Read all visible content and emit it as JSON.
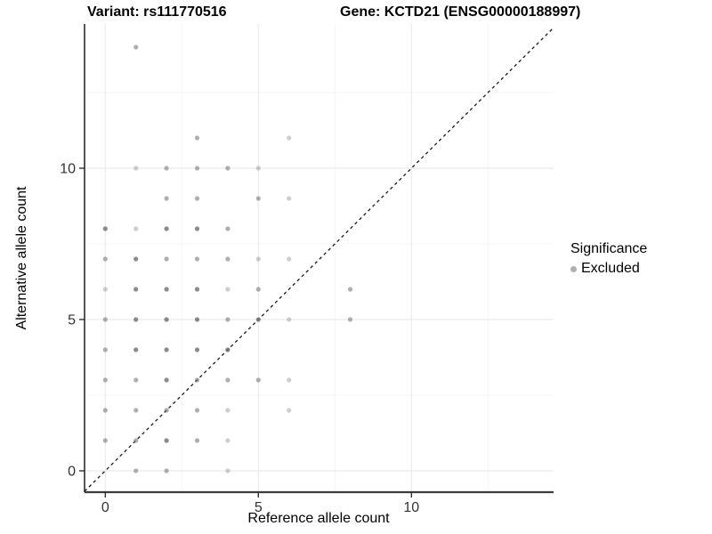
{
  "titles": {
    "variant": "Variant: rs111770516",
    "gene": "Gene: KCTD21 (ENSG00000188997)"
  },
  "axes": {
    "x": {
      "label": "Reference allele count",
      "tick_labels": [
        "0",
        "5",
        "10"
      ]
    },
    "y": {
      "label": "Alternative allele count",
      "tick_labels": [
        "0",
        "5",
        "10"
      ]
    }
  },
  "legend": {
    "title": "Significance",
    "items": [
      {
        "label": "Excluded",
        "color": "#b0b0b0"
      }
    ]
  },
  "colors": {
    "point": "#6e6e6e",
    "grid_major": "#ebebeb",
    "grid_minor": "#f5f5f5",
    "axis_line": "#3c3c3c",
    "tick_label": "#333333",
    "identity_line": "#1a1a1a",
    "background": "#ffffff"
  },
  "chart_data": {
    "type": "scatter",
    "title": "Variant: rs111770516 / Gene: KCTD21 (ENSG00000188997)",
    "xlabel": "Reference allele count",
    "ylabel": "Alternative allele count",
    "xlim": [
      -0.7,
      14.65
    ],
    "ylim": [
      -0.7,
      14.75
    ],
    "x_major_ticks": [
      0,
      5,
      10
    ],
    "y_major_ticks": [
      0,
      5,
      10
    ],
    "x_minor_ticks": [
      2.5,
      7.5,
      12.5
    ],
    "y_minor_ticks": [
      2.5,
      7.5,
      12.5
    ],
    "grid": "major and minor light-gray gridlines on white",
    "legend_position": "right",
    "identity_line": {
      "equation": "y = x",
      "style": "dashed"
    },
    "series": [
      {
        "name": "Excluded",
        "shade_note": "shade: 1=light 2=medium 3=dark (alpha over-plotting)",
        "points": [
          [
            1,
            14,
            2
          ],
          [
            3,
            11,
            2
          ],
          [
            6,
            11,
            1
          ],
          [
            1,
            10,
            1
          ],
          [
            2,
            10,
            2
          ],
          [
            3,
            10,
            2
          ],
          [
            4,
            10,
            2
          ],
          [
            5,
            10,
            1
          ],
          [
            2,
            9,
            2
          ],
          [
            3,
            9,
            2
          ],
          [
            5,
            9,
            2
          ],
          [
            6,
            9,
            1
          ],
          [
            0,
            8,
            3
          ],
          [
            1,
            8,
            1
          ],
          [
            2,
            8,
            3
          ],
          [
            3,
            8,
            3
          ],
          [
            4,
            8,
            2
          ],
          [
            0,
            7,
            2
          ],
          [
            1,
            7,
            3
          ],
          [
            2,
            7,
            2
          ],
          [
            3,
            7,
            2
          ],
          [
            4,
            7,
            2
          ],
          [
            5,
            7,
            1
          ],
          [
            6,
            7,
            1
          ],
          [
            0,
            6,
            1
          ],
          [
            1,
            6,
            3
          ],
          [
            2,
            6,
            3
          ],
          [
            3,
            6,
            3
          ],
          [
            4,
            6,
            1
          ],
          [
            5,
            6,
            2
          ],
          [
            8,
            6,
            2
          ],
          [
            0,
            5,
            2
          ],
          [
            1,
            5,
            3
          ],
          [
            2,
            5,
            3
          ],
          [
            3,
            5,
            3
          ],
          [
            4,
            5,
            2
          ],
          [
            5,
            5,
            3
          ],
          [
            6,
            5,
            1
          ],
          [
            8,
            5,
            2
          ],
          [
            0,
            4,
            2
          ],
          [
            1,
            4,
            3
          ],
          [
            2,
            4,
            3
          ],
          [
            3,
            4,
            3
          ],
          [
            4,
            4,
            3
          ],
          [
            0,
            3,
            2
          ],
          [
            1,
            3,
            2
          ],
          [
            2,
            3,
            3
          ],
          [
            3,
            3,
            2
          ],
          [
            4,
            3,
            2
          ],
          [
            5,
            3,
            2
          ],
          [
            6,
            3,
            1
          ],
          [
            0,
            2,
            2
          ],
          [
            1,
            2,
            2
          ],
          [
            2,
            2,
            2
          ],
          [
            3,
            2,
            2
          ],
          [
            4,
            2,
            1
          ],
          [
            6,
            2,
            1
          ],
          [
            0,
            1,
            2
          ],
          [
            1,
            1,
            2
          ],
          [
            2,
            1,
            3
          ],
          [
            3,
            1,
            2
          ],
          [
            4,
            1,
            1
          ],
          [
            1,
            0,
            2
          ],
          [
            2,
            0,
            2
          ],
          [
            4,
            0,
            1
          ]
        ]
      }
    ]
  }
}
